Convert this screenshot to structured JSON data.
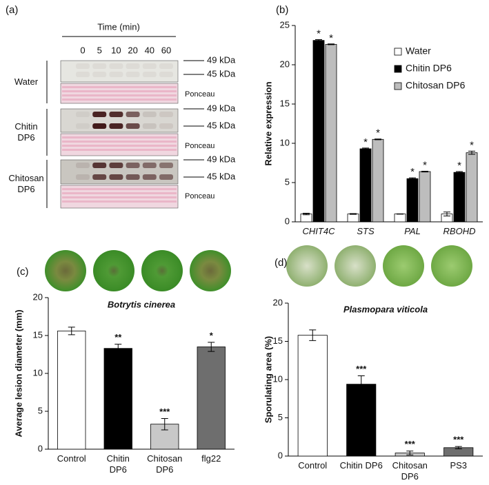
{
  "blot": {
    "label": "(a)",
    "title": "Time (min)",
    "times": [
      "0",
      "5",
      "10",
      "20",
      "40",
      "60"
    ],
    "rows": [
      {
        "name": "Water",
        "bands": [
          "49 kDa",
          "45 kDa"
        ],
        "stain": "Ponceau"
      },
      {
        "name": "Chitin\nDP6",
        "bands": [
          "49 kDa",
          "45 kDa"
        ],
        "stain": "Ponceau"
      },
      {
        "name": "Chitosan\nDP6",
        "bands": [
          "49 kDa",
          "45 kDa"
        ],
        "stain": "Ponceau"
      }
    ]
  },
  "chart_data": [
    {
      "type": "bar",
      "label": "(b)",
      "ylabel": "Relative expression",
      "categories": [
        "CHIT4C",
        "STS",
        "PAL",
        "RBOHD"
      ],
      "category_style": "italic",
      "ylim": [
        0,
        25
      ],
      "yticks": [
        0,
        5,
        10,
        15,
        20,
        25
      ],
      "legend": "upper right",
      "series": [
        {
          "name": "Water",
          "color": "#ffffff",
          "values": [
            1.0,
            1.0,
            1.0,
            1.0
          ],
          "errors": [
            0.1,
            0.05,
            0.02,
            0.25
          ]
        },
        {
          "name": "Chitin DP6",
          "color": "#000000",
          "values": [
            23.1,
            9.3,
            5.5,
            6.3
          ],
          "errors": [
            0.1,
            0.1,
            0.1,
            0.1
          ],
          "sig": [
            "*",
            "*",
            "*",
            "*"
          ]
        },
        {
          "name": "Chitosan DP6",
          "color": "#bdbdbd",
          "values": [
            22.6,
            10.5,
            6.4,
            8.8
          ],
          "errors": [
            0.05,
            0.05,
            0.05,
            0.2
          ],
          "sig": [
            "*",
            "*",
            "*",
            "*"
          ]
        }
      ]
    },
    {
      "type": "bar",
      "label": "(c)",
      "title": "Botrytis cinerea",
      "ylabel": "Average lesion diameter (mm)",
      "categories": [
        "Control",
        "Chitin\nDP6",
        "Chitosan\nDP6",
        "flg22"
      ],
      "ylim": [
        0,
        20
      ],
      "yticks": [
        0,
        5,
        10,
        15,
        20
      ],
      "values": [
        15.6,
        13.3,
        3.3,
        13.5
      ],
      "errors": [
        0.5,
        0.55,
        0.75,
        0.6
      ],
      "sig": [
        null,
        "**",
        "***",
        "*"
      ],
      "colors": [
        "#ffffff",
        "#000000",
        "#c8c8c8",
        "#6e6e6e"
      ]
    },
    {
      "type": "bar",
      "label": "(d)",
      "title": "Plasmopara viticola",
      "ylabel": "Sporulating area (%)",
      "categories": [
        "Control",
        "Chitin DP6",
        "Chitosan\nDP6",
        "PS3"
      ],
      "ylim": [
        0,
        20
      ],
      "yticks": [
        0,
        5,
        10,
        15,
        20
      ],
      "values": [
        15.8,
        9.4,
        0.4,
        1.1
      ],
      "errors": [
        0.7,
        1.1,
        0.25,
        0.15
      ],
      "sig": [
        null,
        "***",
        "***",
        "***"
      ],
      "colors": [
        "#ffffff",
        "#000000",
        "#c8c8c8",
        "#6e6e6e"
      ]
    }
  ]
}
